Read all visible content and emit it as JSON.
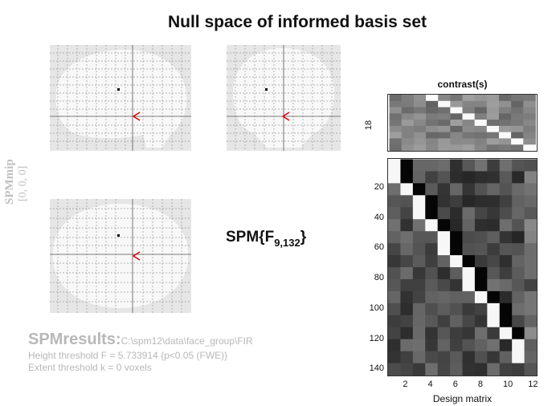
{
  "title": "Null space of informed basis set",
  "mip": {
    "label_top": "SPMmip",
    "label_coords": "[0, 0, 0]"
  },
  "statistic": {
    "prefix": "SPM{F",
    "subscript": "9,132",
    "suffix": "}"
  },
  "results": {
    "heading": "SPMresults:",
    "path": "C:\\spm12\\data\\face_group\\FIR",
    "height_threshold": "Height threshold F = 5.733914  {p<0.05 (FWE)}",
    "extent_threshold": "Extent threshold k = 0 voxels"
  },
  "contrast_panel": {
    "title": "contrast(s)",
    "ytick": "18"
  },
  "design_matrix": {
    "xlabel": "Design matrix",
    "xticks": [
      "2",
      "4",
      "6",
      "8",
      "10",
      "12"
    ],
    "yticks": [
      "20",
      "40",
      "60",
      "80",
      "100",
      "120",
      "140"
    ]
  },
  "colors": {
    "arrow": "#e00000",
    "results_text": "#b8b8b8",
    "glass_bg": "#e6e6e6",
    "brain": "#f8f8f8"
  }
}
